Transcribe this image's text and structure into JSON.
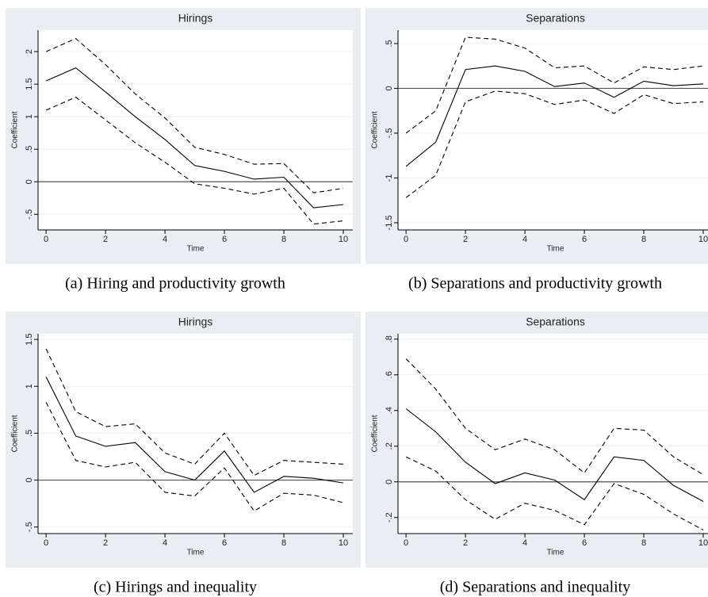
{
  "chart_data": [
    {
      "type": "line",
      "title": "Hirings",
      "caption": "(a) Hiring and productivity growth",
      "ylabel": "Coefficient",
      "xlabel": "Time",
      "x": [
        0,
        1,
        2,
        3,
        4,
        5,
        6,
        7,
        8,
        9,
        10
      ],
      "xlim": [
        -0.27,
        10.32
      ],
      "xticks": [
        0,
        2,
        4,
        6,
        8,
        10
      ],
      "ylim": [
        -0.74,
        2.33
      ],
      "yticks": [
        {
          "value": -0.5,
          "label": "-.5"
        },
        0,
        {
          "value": 0.5,
          "label": ".5"
        },
        1,
        {
          "value": 1.5,
          "label": "1.5"
        },
        2
      ],
      "ref_line": 0,
      "grid": true,
      "series": [
        {
          "color": "#000",
          "dash": false,
          "values": [
            1.55,
            1.75,
            1.38,
            1.0,
            0.65,
            0.25,
            0.16,
            0.04,
            0.07,
            -0.4,
            -0.35
          ]
        },
        {
          "color": "#000",
          "dash": true,
          "values": [
            2.0,
            2.2,
            1.8,
            1.35,
            0.98,
            0.53,
            0.42,
            0.27,
            0.28,
            -0.17,
            -0.1
          ]
        },
        {
          "color": "#000",
          "dash": true,
          "values": [
            1.1,
            1.3,
            0.95,
            0.6,
            0.3,
            -0.03,
            -0.1,
            -0.19,
            -0.1,
            -0.65,
            -0.6
          ]
        }
      ]
    },
    {
      "type": "line",
      "title": "Separations",
      "caption": "(b) Separations and productivity growth",
      "ylabel": "Coefficient",
      "xlabel": "Time",
      "x": [
        0,
        1,
        2,
        3,
        4,
        5,
        6,
        7,
        8,
        9,
        10
      ],
      "xlim": [
        -0.27,
        10.32
      ],
      "xticks": [
        0,
        2,
        4,
        6,
        8,
        10
      ],
      "ylim": [
        -1.58,
        0.65
      ],
      "yticks": [
        {
          "value": -1.5,
          "label": "-1.5"
        },
        -1,
        {
          "value": -0.5,
          "label": "-.5"
        },
        0,
        {
          "value": 0.5,
          "label": ".5"
        }
      ],
      "ref_line": 0,
      "grid": true,
      "series": [
        {
          "color": "#000",
          "dash": false,
          "values": [
            -0.87,
            -0.6,
            0.21,
            0.25,
            0.19,
            0.02,
            0.06,
            -0.1,
            0.08,
            0.03,
            0.05
          ]
        },
        {
          "color": "#000",
          "dash": true,
          "values": [
            -0.5,
            -0.25,
            0.57,
            0.55,
            0.45,
            0.23,
            0.25,
            0.06,
            0.24,
            0.21,
            0.25
          ]
        },
        {
          "color": "#000",
          "dash": true,
          "values": [
            -1.22,
            -0.97,
            -0.15,
            -0.03,
            -0.06,
            -0.18,
            -0.13,
            -0.28,
            -0.07,
            -0.17,
            -0.15
          ]
        }
      ]
    },
    {
      "type": "line",
      "title": "Hirings",
      "caption": "(c) Hirings and inequality",
      "ylabel": "Coefficient",
      "xlabel": "Time",
      "x": [
        0,
        1,
        2,
        3,
        4,
        5,
        6,
        7,
        8,
        9,
        10
      ],
      "xlim": [
        -0.27,
        10.32
      ],
      "xticks": [
        0,
        2,
        4,
        6,
        8,
        10
      ],
      "ylim": [
        -0.57,
        1.56
      ],
      "yticks": [
        {
          "value": -0.5,
          "label": "-.5"
        },
        0,
        {
          "value": 0.5,
          "label": ".5"
        },
        1,
        {
          "value": 1.5,
          "label": "1.5"
        }
      ],
      "ref_line": 0,
      "grid": true,
      "series": [
        {
          "color": "#000",
          "dash": false,
          "values": [
            1.1,
            0.47,
            0.36,
            0.4,
            0.09,
            0.0,
            0.31,
            -0.13,
            0.04,
            0.02,
            -0.03
          ]
        },
        {
          "color": "#000",
          "dash": true,
          "values": [
            1.4,
            0.73,
            0.57,
            0.6,
            0.29,
            0.17,
            0.5,
            0.05,
            0.21,
            0.19,
            0.17
          ]
        },
        {
          "color": "#000",
          "dash": true,
          "values": [
            0.83,
            0.21,
            0.14,
            0.19,
            -0.13,
            -0.17,
            0.13,
            -0.33,
            -0.14,
            -0.16,
            -0.24
          ]
        }
      ]
    },
    {
      "type": "line",
      "title": "Separations",
      "caption": "(d) Separations and inequality",
      "ylabel": "Coefficient",
      "xlabel": "Time",
      "x": [
        0,
        1,
        2,
        3,
        4,
        5,
        6,
        7,
        8,
        9,
        10
      ],
      "xlim": [
        -0.27,
        10.32
      ],
      "xticks": [
        0,
        2,
        4,
        6,
        8,
        10
      ],
      "ylim": [
        -0.29,
        0.83
      ],
      "yticks": [
        {
          "value": -0.2,
          "label": "-.2"
        },
        0,
        {
          "value": 0.2,
          "label": ".2"
        },
        {
          "value": 0.4,
          "label": ".4"
        },
        {
          "value": 0.6,
          "label": ".6"
        },
        {
          "value": 0.8,
          "label": ".8"
        }
      ],
      "ref_line": 0,
      "grid": true,
      "series": [
        {
          "color": "#000",
          "dash": false,
          "values": [
            0.41,
            0.28,
            0.11,
            -0.01,
            0.05,
            0.01,
            -0.1,
            0.14,
            0.12,
            -0.02,
            -0.11
          ]
        },
        {
          "color": "#000",
          "dash": true,
          "values": [
            0.69,
            0.52,
            0.3,
            0.18,
            0.24,
            0.18,
            0.05,
            0.3,
            0.29,
            0.14,
            0.04
          ]
        },
        {
          "color": "#000",
          "dash": true,
          "values": [
            0.14,
            0.06,
            -0.1,
            -0.21,
            -0.12,
            -0.16,
            -0.24,
            -0.01,
            -0.07,
            -0.18,
            -0.27
          ]
        }
      ]
    }
  ]
}
